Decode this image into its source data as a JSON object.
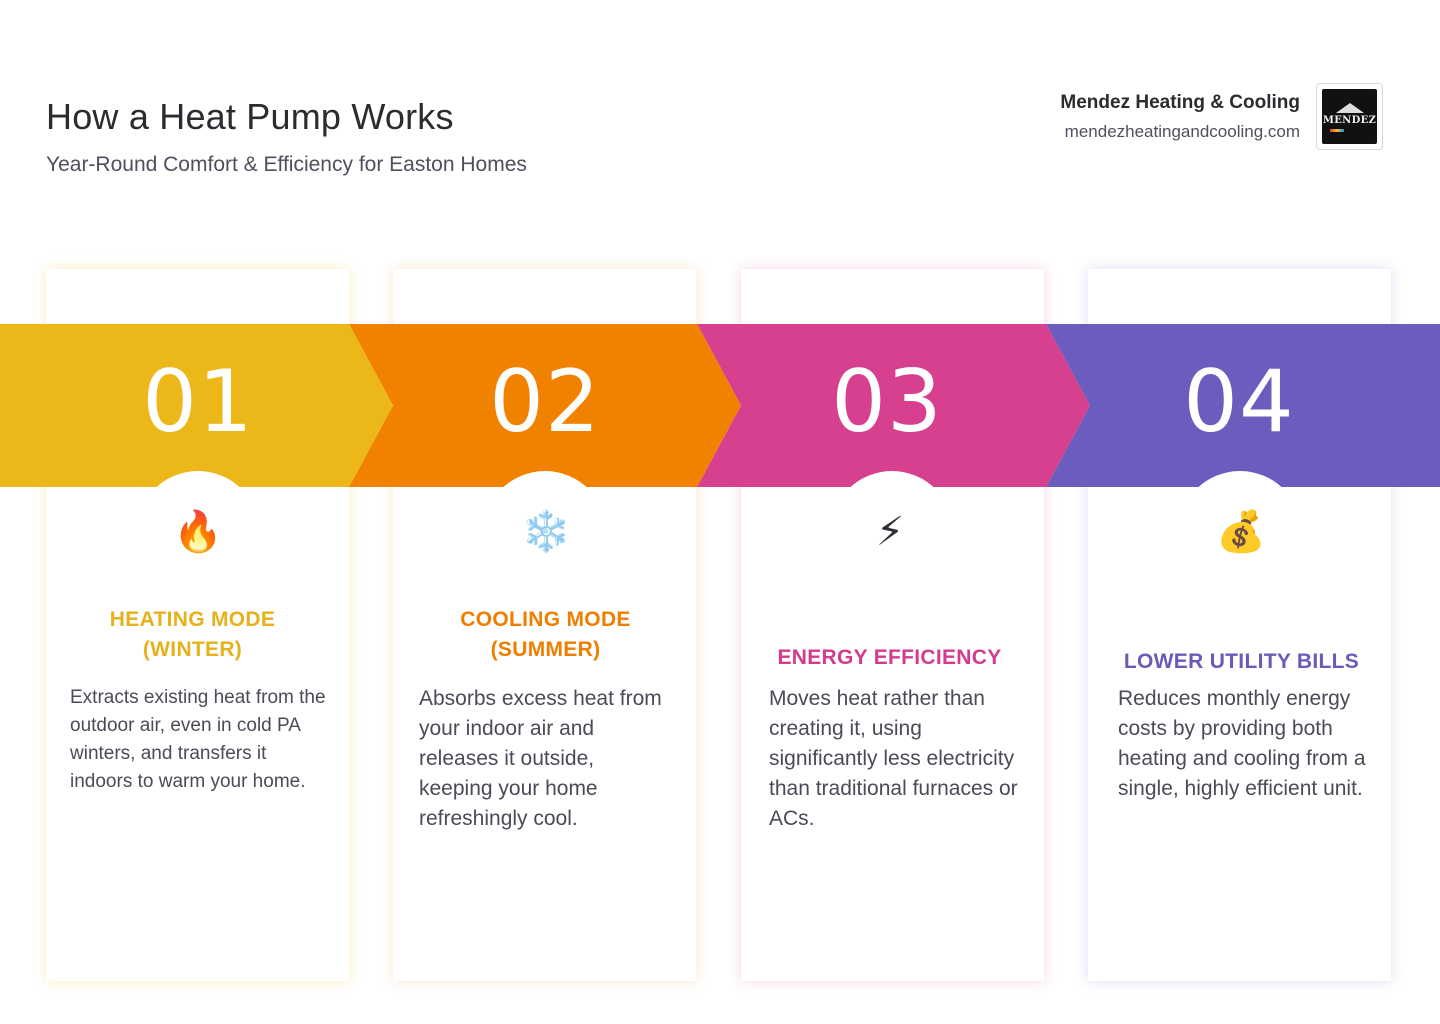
{
  "header": {
    "title": "How a Heat Pump Works",
    "subtitle": "Year-Round Comfort & Efficiency for Easton Homes"
  },
  "brand": {
    "name": "Mendez Heating & Cooling",
    "url": "mendezheatingandcooling.com",
    "logo_text": "MENDEZ"
  },
  "colors": {
    "step1": "#ecb819",
    "step2": "#f08200",
    "step3": "#d6408f",
    "step4": "#6b5dbd"
  },
  "steps": [
    {
      "number": "01",
      "icon": "fire-icon",
      "icon_glyph": "🔥",
      "title_line1": "HEATING MODE",
      "title_line2": "(WINTER)",
      "text": "Extracts existing heat from the outdoor air, even in cold PA winters, and transfers it indoors to warm your home."
    },
    {
      "number": "02",
      "icon": "snowflake-icon",
      "icon_glyph": "❄️",
      "title_line1": "COOLING MODE",
      "title_line2": "(SUMMER)",
      "text": "Absorbs excess heat from your indoor air and releases it outside, keeping your home refreshingly cool."
    },
    {
      "number": "03",
      "icon": "lightning-icon",
      "icon_glyph": "⚡",
      "title_line1": "ENERGY EFFICIENCY",
      "text": "Moves heat rather than creating it, using significantly less electricity than traditional furnaces or ACs."
    },
    {
      "number": "04",
      "icon": "money-bag-icon",
      "icon_glyph": "💰",
      "title_line1": "LOWER UTILITY BILLS",
      "text": "Reduces monthly energy costs by providing both heating and cooling from a single, highly efficient unit."
    }
  ]
}
